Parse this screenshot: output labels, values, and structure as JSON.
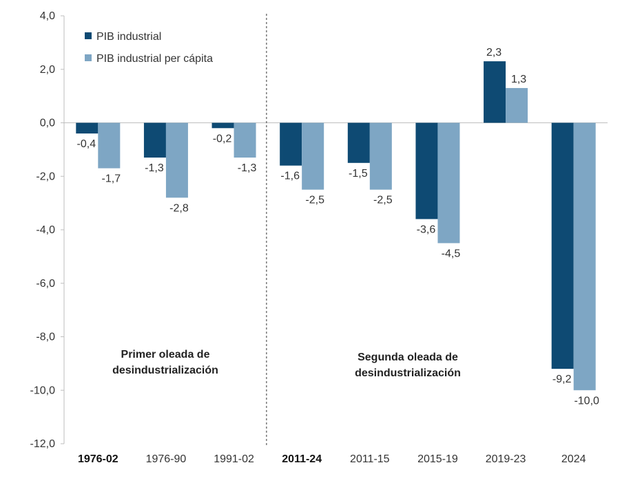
{
  "chart_data": {
    "type": "bar",
    "categories": [
      "1976-02",
      "1976-90",
      "1991-02",
      "2011-24",
      "2011-15",
      "2015-19",
      "2019-23",
      "2024"
    ],
    "bold_categories": [
      "1976-02",
      "2011-24"
    ],
    "series": [
      {
        "name": "PIB industrial",
        "color": "#0e4a73",
        "values": [
          -0.4,
          -1.3,
          -0.2,
          -1.6,
          -1.5,
          -3.6,
          2.3,
          -9.2
        ]
      },
      {
        "name": "PIB industrial per cápita",
        "color": "#7ea6c4",
        "values": [
          -1.7,
          -2.8,
          -1.3,
          -2.5,
          -2.5,
          -4.5,
          1.3,
          -10.0
        ]
      }
    ],
    "value_labels": [
      [
        "-0,4",
        "-1,3",
        "-0,2",
        "-1,6",
        "-1,5",
        "-3,6",
        "2,3",
        "-9,2"
      ],
      [
        "-1,7",
        "-2,8",
        "-1,3",
        "-2,5",
        "-2,5",
        "-4,5",
        "1,3",
        "-10,0"
      ]
    ],
    "ylim": [
      -12,
      4
    ],
    "yticks": [
      4,
      2,
      0,
      -2,
      -4,
      -6,
      -8,
      -10,
      -12
    ],
    "ytick_labels": [
      "4,0",
      "2,0",
      "0,0",
      "-2,0",
      "-4,0",
      "-6,0",
      "-8,0",
      "-10,0",
      "-12,0"
    ],
    "divider_after_category": "1991-02",
    "annotations": [
      {
        "line1": "Primer oleada de",
        "line2": "desindustrialización"
      },
      {
        "line1": "Segunda oleada de",
        "line2": "desindustrialización"
      }
    ],
    "legend_position": "top-left",
    "grid": false
  }
}
